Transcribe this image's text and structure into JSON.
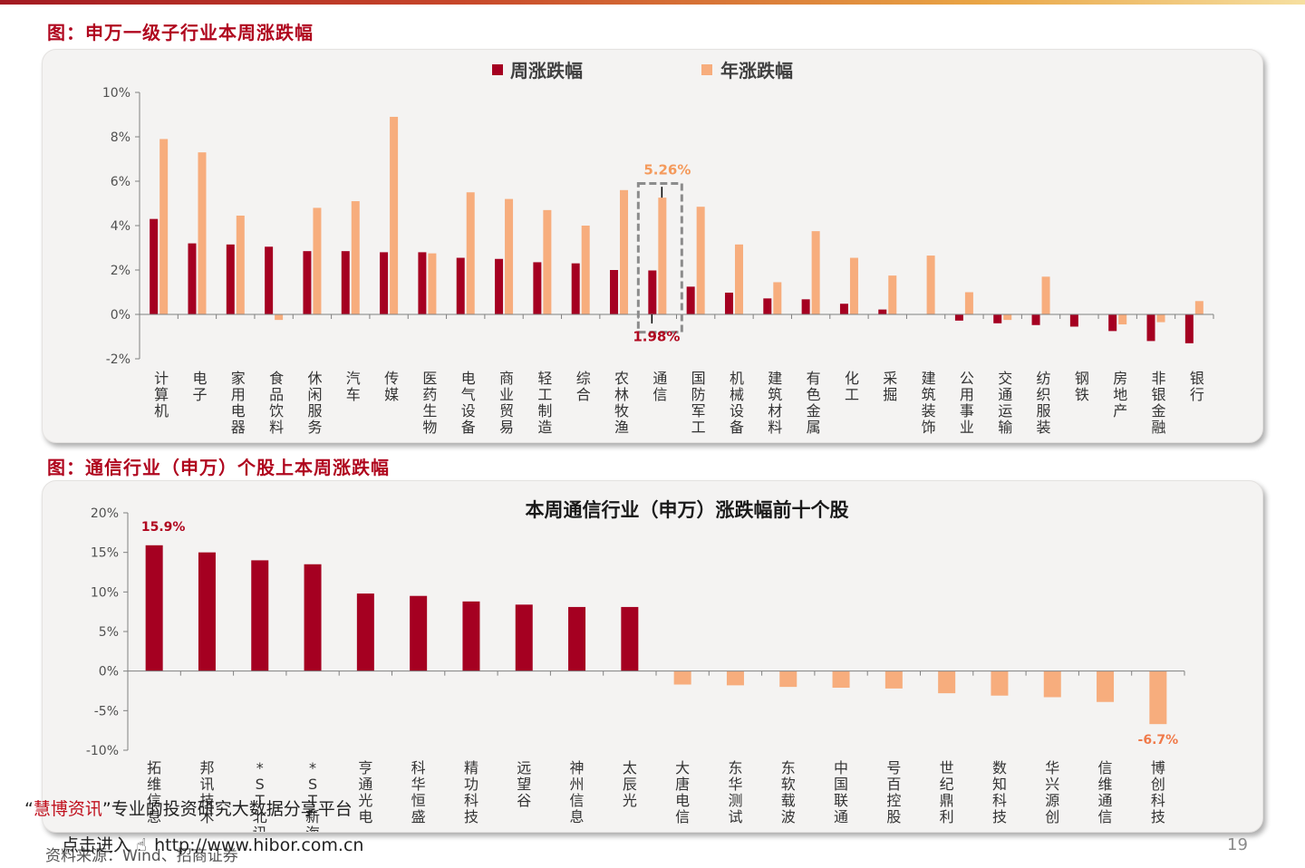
{
  "fig1_title": "图：申万一级子行业本周涨跌幅",
  "fig2_title": "图：通信行业（申万）个股上本周涨跌幅",
  "colors": {
    "week": "#a50021",
    "year": "#f7ad7d",
    "title_red": "#b0071f"
  },
  "chart_data": [
    {
      "type": "bar",
      "title": "",
      "legend": [
        "周涨跌幅",
        "年涨跌幅"
      ],
      "legend_placement": "top-center",
      "categories": [
        "计算机",
        "电子",
        "家用电器",
        "食品饮料",
        "休闲服务",
        "汽车",
        "传媒",
        "医药生物",
        "电气设备",
        "商业贸易",
        "轻工制造",
        "综合",
        "农林牧渔",
        "通信",
        "国防军工",
        "机械设备",
        "建筑材料",
        "有色金属",
        "化工",
        "采掘",
        "建筑装饰",
        "公用事业",
        "交通运输",
        "纺织服装",
        "钢铁",
        "房地产",
        "非银金融",
        "银行"
      ],
      "series": [
        {
          "name": "周涨跌幅",
          "values": [
            4.3,
            3.2,
            3.15,
            3.05,
            2.85,
            2.85,
            2.8,
            2.8,
            2.55,
            2.5,
            2.35,
            2.3,
            2.0,
            1.98,
            1.25,
            0.98,
            0.72,
            0.68,
            0.48,
            0.22,
            0.0,
            -0.28,
            -0.4,
            -0.48,
            -0.55,
            -0.75,
            -1.2,
            -1.3
          ]
        },
        {
          "name": "年涨跌幅",
          "values": [
            7.9,
            7.3,
            4.45,
            -0.25,
            4.8,
            5.1,
            8.9,
            2.75,
            5.5,
            5.2,
            4.7,
            4.0,
            5.6,
            5.26,
            4.85,
            3.15,
            1.45,
            3.75,
            2.55,
            1.75,
            2.65,
            1.0,
            -0.25,
            1.7,
            0.0,
            -0.45,
            -0.35,
            0.6
          ]
        }
      ],
      "ylim": [
        -2,
        10
      ],
      "yticks": [
        "10%",
        "8%",
        "6%",
        "4%",
        "2%",
        "0%",
        "-2%"
      ],
      "annotations": {
        "highlight_category": "通信",
        "week_label": "1.98%",
        "year_label": "5.26%"
      },
      "grid": false
    },
    {
      "type": "bar",
      "title": "本周通信行业（申万）涨跌幅前十个股",
      "categories": [
        "拓维信息",
        "邦讯技术",
        "*ST北讯",
        "*ST新海",
        "亨通光电",
        "科华恒盛",
        "精功科技",
        "远望谷",
        "神州信息",
        "太辰光",
        "大唐电信",
        "东华测试",
        "东软载波",
        "中国联通",
        "号百控股",
        "世纪鼎利",
        "数知科技",
        "华兴源创",
        "信维通信",
        "博创科技"
      ],
      "values": [
        15.9,
        15.0,
        14.0,
        13.5,
        9.8,
        9.5,
        8.8,
        8.4,
        8.1,
        8.1,
        -1.7,
        -1.8,
        -2.0,
        -2.1,
        -2.2,
        -2.8,
        -3.1,
        -3.3,
        -3.9,
        -6.7
      ],
      "ylim": [
        -10,
        20
      ],
      "yticks": [
        "20%",
        "15%",
        "10%",
        "5%",
        "0%",
        "-5%",
        "-10%"
      ],
      "annotations": {
        "max_label": "15.9%",
        "min_label": "-6.7%"
      },
      "grid": false
    }
  ],
  "footer": {
    "brand": "慧博资讯",
    "quote_open": "“",
    "quote_close": "”",
    "tagline": "专业的投资研究大数据分享平台",
    "link_prefix": "点击进入",
    "url": "http://www.hibor.com.cn",
    "source": "资料来源：Wind、招商证券",
    "page_number": "19"
  }
}
